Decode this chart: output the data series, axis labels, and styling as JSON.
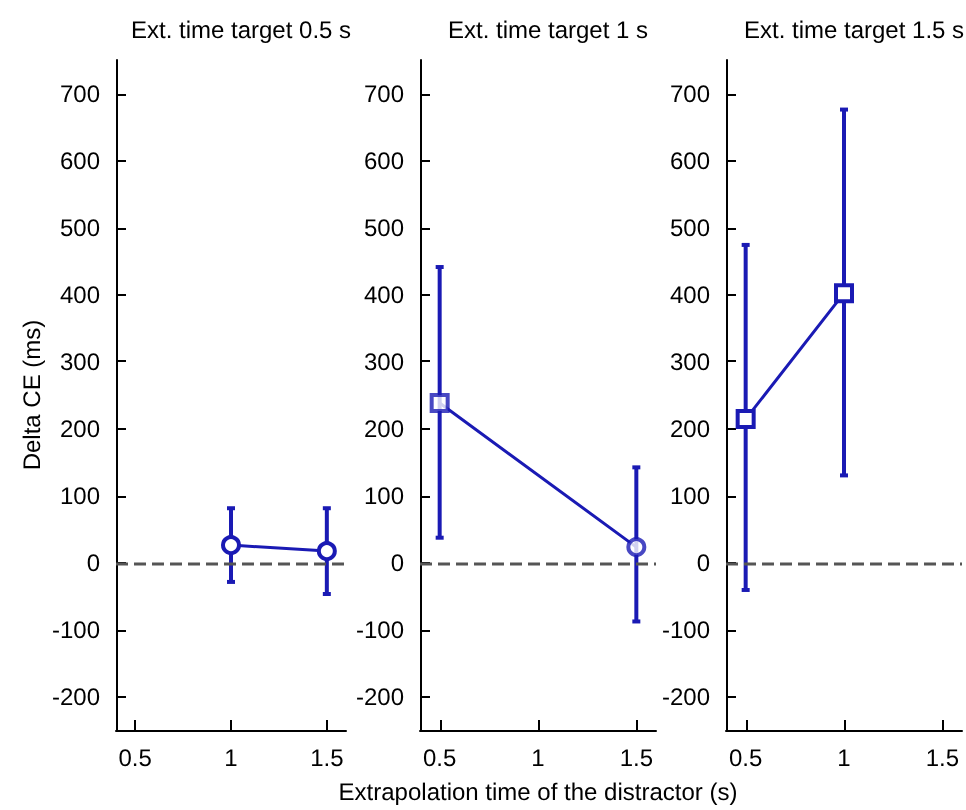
{
  "chart_data": [
    {
      "type": "line",
      "title": "Ext. time target 0.5 s",
      "ylabel": "Delta CE (ms)",
      "xlim": [
        0.4,
        1.6
      ],
      "xticks": [
        0.5,
        1,
        1.5
      ],
      "ylim": [
        -250,
        750
      ],
      "yticks": [
        -200,
        -100,
        0,
        100,
        200,
        300,
        400,
        500,
        600,
        700
      ],
      "grid": false,
      "ref_lines": [
        {
          "axis": "y",
          "value": 0,
          "color": "#555555",
          "line_style": "dashed"
        }
      ],
      "series": [
        {
          "x": [
            1,
            1.5
          ],
          "values": [
            26,
            17
          ],
          "errors": [
            [
              -29,
              81
            ],
            [
              -47,
              81
            ]
          ],
          "color": "#1a1ab4",
          "marker": "circle",
          "line_style": "solid"
        }
      ]
    },
    {
      "type": "line",
      "title": "Ext. time target 1 s",
      "xlabel": "Extrapolation time of the distractor (s)",
      "xlim": [
        0.4,
        1.6
      ],
      "xticks": [
        0.5,
        1,
        1.5
      ],
      "ylim": [
        -250,
        750
      ],
      "yticks": [
        -200,
        -100,
        0,
        100,
        200,
        300,
        400,
        500,
        600,
        700
      ],
      "grid": false,
      "ref_lines": [
        {
          "axis": "y",
          "value": 0,
          "color": "#555555",
          "line_style": "dashed"
        }
      ],
      "series": [
        {
          "x": [
            0.5,
            1.5
          ],
          "values": [
            238,
            23
          ],
          "errors": [
            [
              37,
              441
            ],
            [
              -88,
              142
            ]
          ],
          "color": "#1a1ab4",
          "marker": "none",
          "line_style": "solid"
        },
        {
          "type": "scatter",
          "x": [
            0.5
          ],
          "values": [
            238
          ],
          "color": "#1a1ab4",
          "marker": "square"
        },
        {
          "type": "scatter",
          "x": [
            1.5
          ],
          "values": [
            23
          ],
          "color": "#1a1ab4",
          "marker": "circle"
        }
      ]
    },
    {
      "type": "line",
      "title": "Ext. time target 1.5 s",
      "xlim": [
        0.4,
        1.6
      ],
      "xticks": [
        0.5,
        1,
        1.5
      ],
      "ylim": [
        -250,
        750
      ],
      "yticks": [
        -200,
        -100,
        0,
        100,
        200,
        300,
        400,
        500,
        600,
        700
      ],
      "grid": false,
      "ref_lines": [
        {
          "axis": "y",
          "value": 0,
          "color": "#555555",
          "line_style": "dashed"
        }
      ],
      "series": [
        {
          "x": [
            0.5,
            1
          ],
          "values": [
            214,
            402
          ],
          "errors": [
            [
              -41,
              474
            ],
            [
              130,
              676
            ]
          ],
          "color": "#1a1ab4",
          "marker": "square",
          "line_style": "solid"
        }
      ]
    }
  ]
}
